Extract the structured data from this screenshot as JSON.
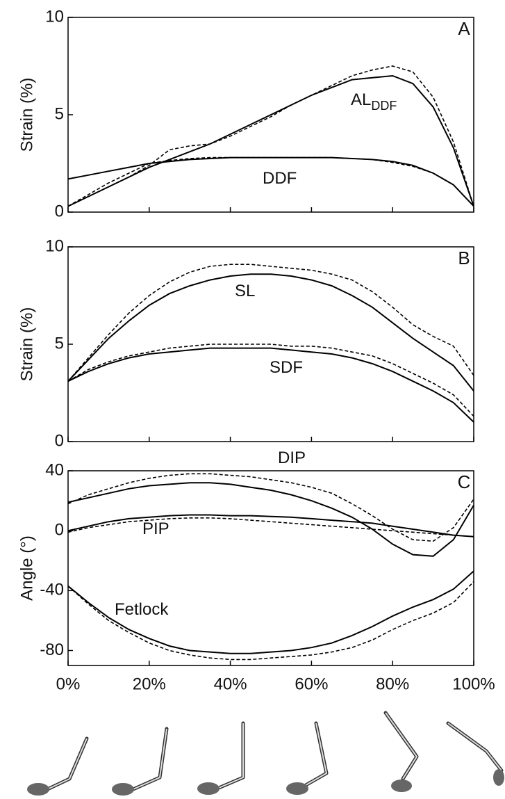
{
  "chart_data": [
    {
      "type": "line",
      "panel_label": "A",
      "y_label": "Strain (%)",
      "x": [
        0,
        5,
        10,
        15,
        20,
        25,
        30,
        35,
        40,
        45,
        50,
        55,
        60,
        65,
        70,
        75,
        80,
        85,
        90,
        95,
        100
      ],
      "xlim": [
        0,
        100
      ],
      "xticks": [
        0,
        20,
        40,
        60,
        80,
        100
      ],
      "ylim": [
        0,
        10
      ],
      "yticks": [
        0,
        5,
        10
      ],
      "series": [
        {
          "name": "AL",
          "name_sub": "DDF",
          "color": "#000000",
          "values": [
            0.3,
            0.8,
            1.3,
            1.8,
            2.3,
            2.7,
            3.1,
            3.5,
            4.0,
            4.5,
            5.0,
            5.5,
            6.0,
            6.4,
            6.8,
            6.9,
            7.0,
            6.6,
            5.4,
            3.3,
            0.3
          ],
          "dashed_values": [
            0.3,
            0.8,
            1.3,
            1.8,
            2.4,
            3.2,
            3.4,
            3.5,
            3.9,
            4.4,
            4.9,
            5.5,
            6.0,
            6.5,
            7.0,
            7.3,
            7.5,
            7.2,
            5.9,
            3.6,
            0.3
          ]
        },
        {
          "name": "DDF",
          "color": "#000000",
          "values": [
            1.7,
            1.9,
            2.1,
            2.3,
            2.5,
            2.6,
            2.7,
            2.75,
            2.8,
            2.8,
            2.8,
            2.8,
            2.8,
            2.8,
            2.75,
            2.7,
            2.6,
            2.4,
            2.0,
            1.4,
            0.3
          ],
          "dashed_values": [
            0.3,
            0.9,
            1.5,
            2.0,
            2.5,
            2.65,
            2.75,
            2.8,
            2.8,
            2.8,
            2.8,
            2.8,
            2.8,
            2.8,
            2.75,
            2.7,
            2.55,
            2.35,
            2.0,
            1.4,
            0.3
          ]
        }
      ]
    },
    {
      "type": "line",
      "panel_label": "B",
      "y_label": "Strain (%)",
      "x": [
        0,
        5,
        10,
        15,
        20,
        25,
        30,
        35,
        40,
        45,
        50,
        55,
        60,
        65,
        70,
        75,
        80,
        85,
        90,
        95,
        100
      ],
      "xlim": [
        0,
        100
      ],
      "xticks": [
        0,
        20,
        40,
        60,
        80,
        100
      ],
      "ylim": [
        0,
        10
      ],
      "yticks": [
        0,
        5,
        10
      ],
      "series": [
        {
          "name": "SL",
          "color": "#000000",
          "values": [
            3.1,
            4.2,
            5.3,
            6.2,
            7.0,
            7.6,
            8.0,
            8.3,
            8.5,
            8.6,
            8.6,
            8.5,
            8.3,
            8.0,
            7.5,
            6.9,
            6.1,
            5.3,
            4.6,
            3.9,
            2.6
          ],
          "dashed_values": [
            3.1,
            4.3,
            5.5,
            6.6,
            7.5,
            8.2,
            8.7,
            9.0,
            9.1,
            9.1,
            9.0,
            8.9,
            8.8,
            8.6,
            8.3,
            7.7,
            6.9,
            6.0,
            5.4,
            4.9,
            3.4
          ]
        },
        {
          "name": "SDF",
          "color": "#000000",
          "values": [
            3.1,
            3.6,
            4.0,
            4.3,
            4.5,
            4.6,
            4.7,
            4.8,
            4.8,
            4.8,
            4.8,
            4.7,
            4.6,
            4.5,
            4.3,
            4.0,
            3.6,
            3.1,
            2.6,
            2.0,
            1.0
          ],
          "dashed_values": [
            3.1,
            3.7,
            4.1,
            4.4,
            4.6,
            4.8,
            4.9,
            5.0,
            5.0,
            5.0,
            5.0,
            4.9,
            4.9,
            4.8,
            4.6,
            4.4,
            4.0,
            3.5,
            3.0,
            2.4,
            1.3
          ]
        }
      ]
    },
    {
      "type": "line",
      "panel_label": "C",
      "y_label": "Angle (°)",
      "x": [
        0,
        5,
        10,
        15,
        20,
        25,
        30,
        35,
        40,
        45,
        50,
        55,
        60,
        65,
        70,
        75,
        80,
        85,
        90,
        95,
        100
      ],
      "xlim": [
        0,
        100
      ],
      "xticks": [
        {
          "value": 0,
          "label": "0%"
        },
        {
          "value": 20,
          "label": "20%"
        },
        {
          "value": 40,
          "label": "40%"
        },
        {
          "value": 60,
          "label": "60%"
        },
        {
          "value": 80,
          "label": "80%"
        },
        {
          "value": 100,
          "label": "100%"
        }
      ],
      "ylim": [
        -90,
        40
      ],
      "yticks": [
        -80,
        -40,
        0,
        40
      ],
      "series": [
        {
          "name": "DIP",
          "color": "#000000",
          "values": [
            19,
            22,
            25,
            28,
            30,
            31,
            32,
            32,
            31,
            29,
            27,
            24,
            20,
            15,
            9,
            1,
            -9,
            -16,
            -17,
            -6,
            17
          ],
          "dashed_values": [
            18,
            24,
            28,
            32,
            35,
            37,
            38,
            38,
            37,
            36,
            34,
            32,
            29,
            25,
            18,
            10,
            1,
            -6,
            -7,
            2,
            21
          ]
        },
        {
          "name": "PIP",
          "color": "#000000",
          "values": [
            0,
            3,
            6,
            8,
            9,
            10,
            10.5,
            10.5,
            10,
            10,
            9.5,
            9,
            8,
            7,
            6,
            5,
            3,
            1,
            -1,
            -3,
            -4
          ],
          "dashed_values": [
            -1,
            2,
            4,
            6,
            7,
            8,
            8.5,
            8.5,
            8,
            7,
            6,
            5,
            4,
            3,
            2,
            1,
            0,
            -1,
            -2,
            -3,
            -4
          ]
        },
        {
          "name": "Fetlock",
          "color": "#000000",
          "values": [
            -37,
            -48,
            -58,
            -66,
            -72,
            -77,
            -80,
            -81,
            -82,
            -82,
            -81,
            -80,
            -78,
            -75,
            -70,
            -64,
            -57,
            -51,
            -46,
            -39,
            -27
          ],
          "dashed_values": [
            -37,
            -49,
            -60,
            -68,
            -75,
            -80,
            -83,
            -85,
            -86,
            -86,
            -85,
            -84,
            -83,
            -81,
            -78,
            -73,
            -66,
            -60,
            -55,
            -48,
            -34
          ]
        }
      ]
    }
  ]
}
